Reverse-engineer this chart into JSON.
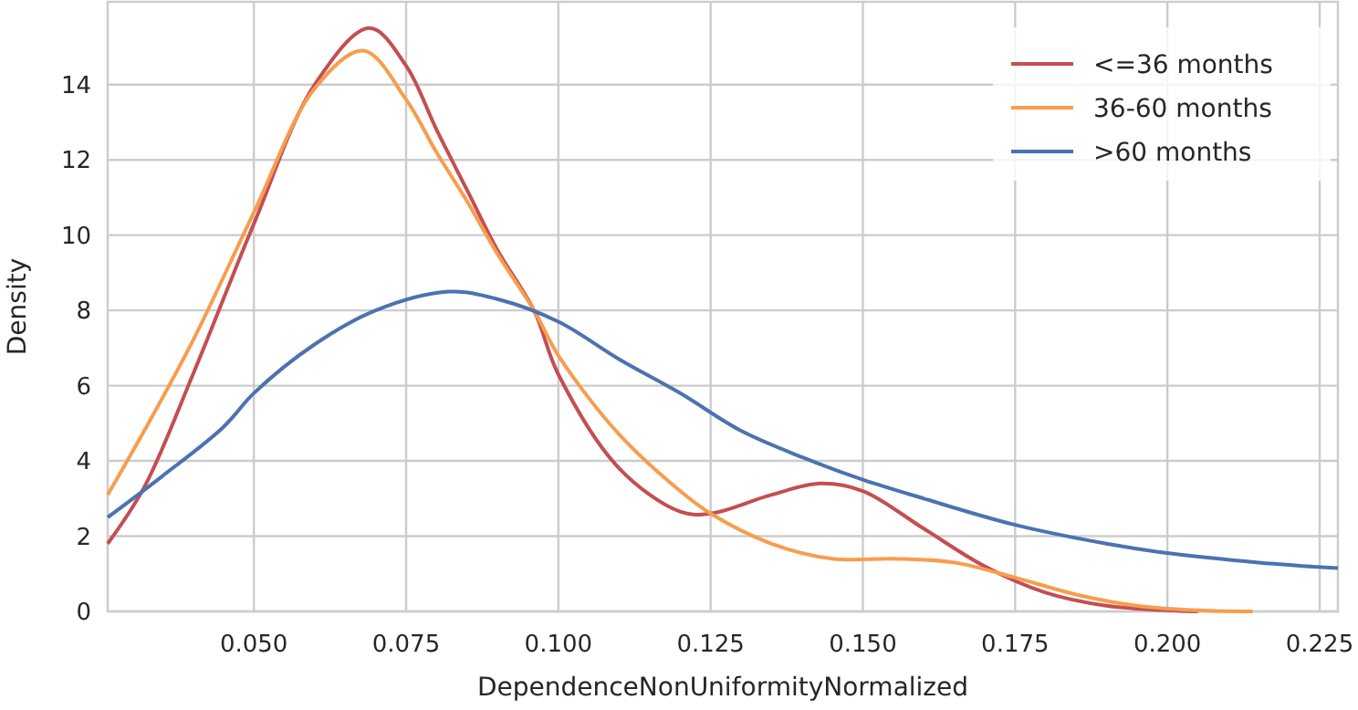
{
  "chart_data": {
    "type": "line",
    "xlabel": "DependenceNonUniformityNormalized",
    "ylabel": "Density",
    "xlim": [
      0.026,
      0.228
    ],
    "ylim": [
      0,
      16.2
    ],
    "xticks": [
      {
        "value": 0.05,
        "label": "0.050"
      },
      {
        "value": 0.075,
        "label": "0.075"
      },
      {
        "value": 0.1,
        "label": "0.100"
      },
      {
        "value": 0.125,
        "label": "0.125"
      },
      {
        "value": 0.15,
        "label": "0.150"
      },
      {
        "value": 0.175,
        "label": "0.175"
      },
      {
        "value": 0.2,
        "label": "0.200"
      },
      {
        "value": 0.225,
        "label": "0.225"
      }
    ],
    "yticks": [
      0,
      2,
      4,
      6,
      8,
      10,
      12,
      14
    ],
    "grid": true,
    "legend": "top right",
    "line_style": "solid",
    "series": [
      {
        "name": "<=36 months",
        "color": "#c44e52",
        "x": [
          0.026,
          0.032,
          0.04,
          0.05,
          0.06,
          0.069,
          0.075,
          0.08,
          0.085,
          0.09,
          0.096,
          0.1,
          0.11,
          0.12,
          0.125,
          0.135,
          0.143,
          0.15,
          0.16,
          0.17,
          0.18,
          0.19,
          0.2,
          0.205
        ],
        "values": [
          1.8,
          3.3,
          6.3,
          10.3,
          14,
          15.5,
          14.5,
          12.8,
          11.2,
          9.6,
          8,
          6.3,
          3.8,
          2.65,
          2.6,
          3.1,
          3.4,
          3.2,
          2.2,
          1.2,
          0.5,
          0.15,
          0.03,
          0
        ]
      },
      {
        "name": "36-60 months",
        "color": "#f79d4e",
        "x": [
          0.026,
          0.032,
          0.04,
          0.05,
          0.06,
          0.068,
          0.075,
          0.08,
          0.085,
          0.09,
          0.096,
          0.1,
          0.11,
          0.12,
          0.125,
          0.135,
          0.145,
          0.155,
          0.165,
          0.175,
          0.185,
          0.195,
          0.205,
          0.214
        ],
        "values": [
          3.1,
          4.8,
          7.2,
          10.6,
          13.9,
          14.9,
          13.6,
          12.2,
          10.9,
          9.5,
          8,
          6.8,
          4.7,
          3.2,
          2.6,
          1.8,
          1.4,
          1.4,
          1.3,
          0.9,
          0.45,
          0.15,
          0.03,
          0
        ]
      },
      {
        "name": ">60 months",
        "color": "#4c72b0",
        "x": [
          0.026,
          0.035,
          0.045,
          0.05,
          0.06,
          0.07,
          0.082,
          0.09,
          0.1,
          0.11,
          0.12,
          0.13,
          0.14,
          0.15,
          0.16,
          0.175,
          0.19,
          0.2,
          0.215,
          0.228
        ],
        "values": [
          2.5,
          3.6,
          4.9,
          5.8,
          7.1,
          8,
          8.5,
          8.3,
          7.7,
          6.7,
          5.8,
          4.8,
          4.1,
          3.5,
          3,
          2.3,
          1.8,
          1.55,
          1.3,
          1.15
        ]
      }
    ]
  }
}
